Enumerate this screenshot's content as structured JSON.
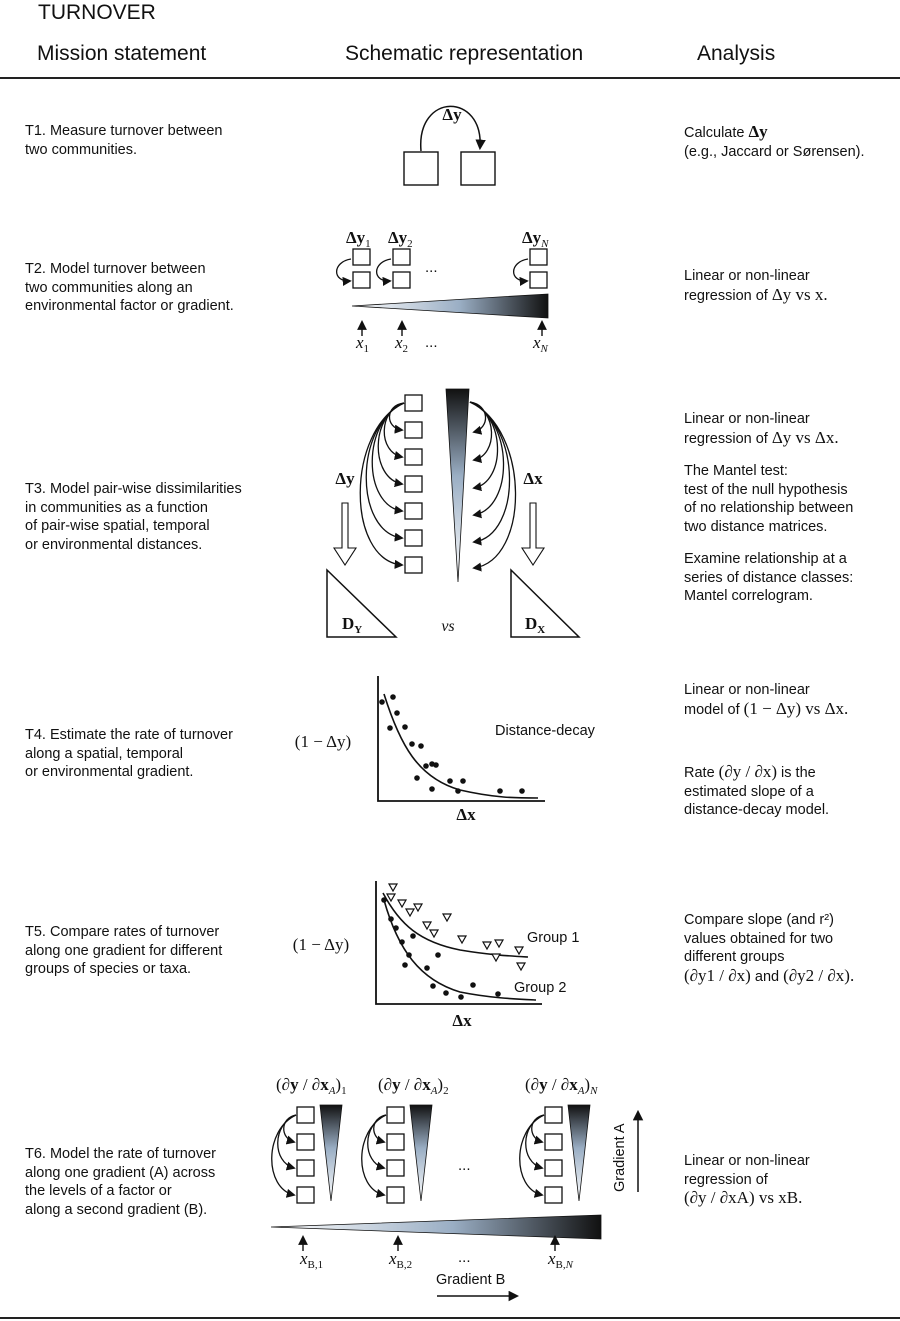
{
  "header": {
    "title": "TURNOVER",
    "col_mission": "Mission statement",
    "col_schematic": "Schematic representation",
    "col_analysis": "Analysis"
  },
  "rows": [
    {
      "id": "T1",
      "mission": [
        "T1. Measure turnover between",
        "two communities."
      ],
      "analysis": {
        "line1_prefix": "Calculate ",
        "line1_math": "Δy",
        "line2": "(e.g., Jaccard or Sørensen)."
      },
      "schematic": {
        "delta_label": "Δy"
      }
    },
    {
      "id": "T2",
      "mission": [
        "T2. Model turnover between",
        "two communities along an",
        "environmental factor or gradient."
      ],
      "analysis": {
        "line1": "Linear or non-linear",
        "line2_prefix": "regression of ",
        "line2_math": "Δy vs x."
      },
      "schematic": {
        "top_labels": [
          "Δy1",
          "Δy2",
          "ΔyN"
        ],
        "ellipsis": "...",
        "bottom_labels": [
          "x1",
          "x2",
          "xN"
        ]
      }
    },
    {
      "id": "T3",
      "mission": [
        "T3. Model pair-wise dissimilarities",
        "in communities as a function",
        "of pair-wise spatial, temporal",
        "or environmental distances."
      ],
      "analysis": {
        "p1_line1": "Linear or non-linear",
        "p1_line2_prefix": "regression of ",
        "p1_line2_math": "Δy vs Δx.",
        "p2": [
          "The Mantel test:",
          "test of the null hypothesis",
          "of no relationship between",
          "two distance matrices."
        ],
        "p3": [
          "Examine relationship at a",
          "series of distance classes:",
          "Mantel correlogram."
        ]
      },
      "schematic": {
        "left_label": "Δy",
        "right_label": "Δx",
        "left_matrix": "DY",
        "right_matrix": "DX",
        "vs": "vs"
      }
    },
    {
      "id": "T4",
      "mission": [
        "T4. Estimate the rate of turnover",
        "along a spatial, temporal",
        "or environmental gradient."
      ],
      "analysis": {
        "p1_line1": "Linear or non-linear",
        "p1_line2_prefix": "model of ",
        "p1_line2_math": "(1 − Δy) vs Δx.",
        "p2_prefix": "Rate ",
        "p2_math": "(∂y / ∂x)",
        "p2_suffix": " is the",
        "p2_rest": [
          "estimated slope of a",
          "distance-decay model."
        ]
      },
      "schematic": {
        "ylabel": "(1 − Δy)",
        "xlabel": "Δx",
        "curve_label": "Distance-decay"
      }
    },
    {
      "id": "T5",
      "mission": [
        "T5. Compare rates of turnover",
        "along one gradient for different",
        "groups of species or taxa."
      ],
      "analysis": {
        "line1": "Compare slope (and r²)",
        "line2": "values obtained for two",
        "line3": "different groups",
        "line4_math1": "(∂y1 / ∂x)",
        "line4_and": " and ",
        "line4_math2": "(∂y2 / ∂x)."
      },
      "schematic": {
        "ylabel": "(1 − Δy)",
        "xlabel": "Δx",
        "group1": "Group 1",
        "group2": "Group 2"
      }
    },
    {
      "id": "T6",
      "mission": [
        "T6. Model the rate of turnover",
        "along one gradient (A) across",
        "the levels of a factor or",
        "along a second gradient (B)."
      ],
      "analysis": {
        "line1": "Linear or non-linear",
        "line2": "regression of",
        "line3_math": "(∂y / ∂xA) vs xB."
      },
      "schematic": {
        "top_labels": [
          "(∂y / ∂xA)1",
          "(∂y / ∂xA)2",
          "(∂y / ∂xA)N"
        ],
        "ellipsis": "...",
        "bottom_labels": [
          "xB,1",
          "xB,2",
          "xB,N"
        ],
        "gradient_a": "Gradient A",
        "gradient_b": "Gradient B"
      }
    }
  ],
  "colors": {
    "gradient_dark": "#111111",
    "gradient_light": "#ffffff",
    "gradient_mid": "#9aaec4"
  }
}
